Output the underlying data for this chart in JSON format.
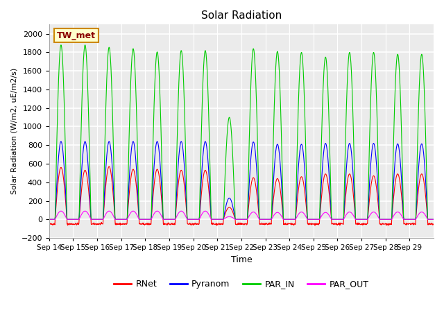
{
  "title": "Solar Radiation",
  "ylabel": "Solar Radiation (W/m2, uE/m2/s)",
  "xlabel": "Time",
  "ylim": [
    -200,
    2100
  ],
  "yticks": [
    -200,
    0,
    200,
    400,
    600,
    800,
    1000,
    1200,
    1400,
    1600,
    1800,
    2000
  ],
  "x_tick_labels": [
    "Sep 14",
    "Sep 15",
    "Sep 16",
    "Sep 17",
    "Sep 18",
    "Sep 19",
    "Sep 20",
    "Sep 21",
    "Sep 22",
    "Sep 23",
    "Sep 24",
    "Sep 25",
    "Sep 26",
    "Sep 27",
    "Sep 28",
    "Sep 29"
  ],
  "colors": {
    "RNet": "#ff0000",
    "Pyranom": "#0000ff",
    "PAR_IN": "#00cc00",
    "PAR_OUT": "#ff00ff"
  },
  "plot_bg_color": "#ebebeb",
  "annotation_text": "TW_met",
  "annotation_bg": "#ffffcc",
  "annotation_border": "#cc8800",
  "n_days": 16,
  "points_per_day": 96,
  "par_in_peaks": [
    1880,
    1880,
    1855,
    1840,
    1805,
    1820,
    1820,
    1100,
    1840,
    1810,
    1800,
    1750,
    1800,
    1800,
    1780,
    1780
  ],
  "pyranom_peaks": [
    840,
    840,
    840,
    840,
    840,
    840,
    840,
    230,
    835,
    810,
    810,
    820,
    820,
    820,
    815,
    815
  ],
  "rnet_peaks": [
    560,
    530,
    570,
    540,
    540,
    530,
    530,
    130,
    450,
    440,
    460,
    490,
    490,
    470,
    490,
    490
  ],
  "par_out_peaks": [
    90,
    90,
    90,
    90,
    90,
    90,
    90,
    30,
    80,
    75,
    80,
    75,
    80,
    80,
    80,
    80
  ]
}
